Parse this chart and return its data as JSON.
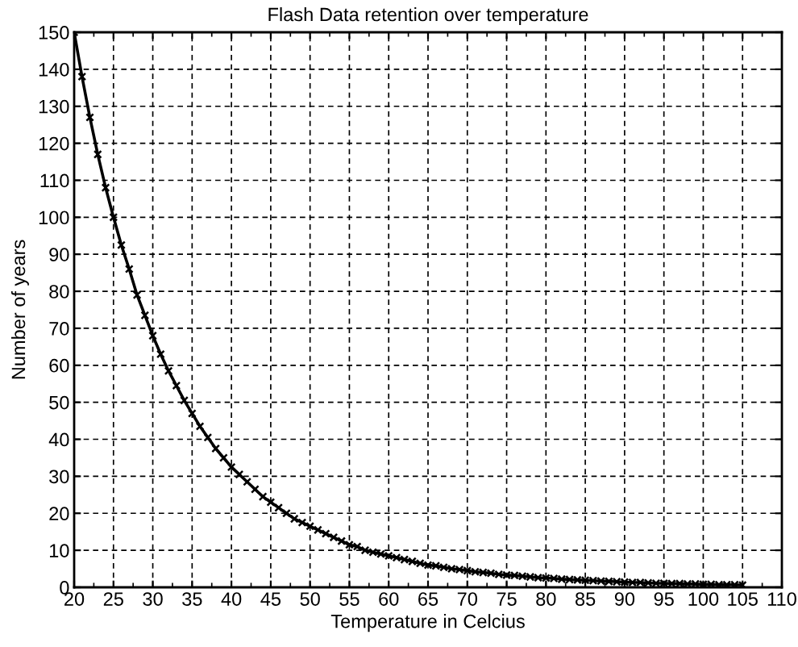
{
  "chart_data": {
    "type": "line",
    "title": "Flash Data retention over temperature",
    "xlabel": "Temperature in Celcius",
    "ylabel": "Number of years",
    "x": [
      20,
      21,
      22,
      23,
      24,
      25,
      26,
      27,
      28,
      29,
      30,
      31,
      32,
      33,
      34,
      35,
      36,
      37,
      38,
      39,
      40,
      41,
      42,
      43,
      44,
      45,
      46,
      47,
      48,
      49,
      50,
      51,
      52,
      53,
      54,
      55,
      56,
      57,
      58,
      59,
      60,
      61,
      62,
      63,
      64,
      65,
      66,
      67,
      68,
      69,
      70,
      71,
      72,
      73,
      74,
      75,
      76,
      77,
      78,
      79,
      80,
      81,
      82,
      83,
      84,
      85,
      86,
      87,
      88,
      89,
      90,
      91,
      92,
      93,
      94,
      95,
      96,
      97,
      98,
      99,
      100,
      101,
      102,
      103,
      104,
      105
    ],
    "series": [
      {
        "color": "#000000",
        "values": [
          150,
          138,
          127,
          117,
          108,
          100,
          92.5,
          86,
          79,
          73.5,
          68,
          63,
          58.5,
          54.5,
          50.5,
          47,
          43.5,
          40.5,
          37.5,
          35,
          32.5,
          30.5,
          28.5,
          26.5,
          24.5,
          23,
          21.5,
          20,
          18.5,
          17.5,
          16.5,
          15.5,
          14.5,
          13.5,
          12.5,
          11.5,
          11,
          10,
          9.5,
          9,
          8.5,
          8,
          7.5,
          7,
          6.5,
          6,
          5.8,
          5.4,
          5,
          4.8,
          4.5,
          4.2,
          4,
          3.8,
          3.5,
          3.3,
          3.2,
          3,
          2.8,
          2.6,
          2.5,
          2.4,
          2.2,
          2.1,
          2,
          1.9,
          1.8,
          1.7,
          1.6,
          1.5,
          1.4,
          1.3,
          1.3,
          1.2,
          1.1,
          1.1,
          1,
          1,
          0.9,
          0.9,
          0.8,
          0.8,
          0.7,
          0.7,
          0.7,
          0.6
        ]
      }
    ],
    "xlim": [
      20,
      110
    ],
    "xticks": [
      20,
      {
        "value": 22.5,
        "label": null
      },
      25,
      {
        "value": 27.5,
        "label": null
      },
      30,
      {
        "value": 32.5,
        "label": null
      },
      35,
      {
        "value": 37.5,
        "label": null
      },
      40,
      {
        "value": 42.5,
        "label": null
      },
      45,
      {
        "value": 47.5,
        "label": null
      },
      50,
      {
        "value": 52.5,
        "label": null
      },
      55,
      {
        "value": 57.5,
        "label": null
      },
      60,
      {
        "value": 62.5,
        "label": null
      },
      65,
      {
        "value": 67.5,
        "label": null
      },
      70,
      {
        "value": 72.5,
        "label": null
      },
      75,
      {
        "value": 77.5,
        "label": null
      },
      80,
      {
        "value": 82.5,
        "label": null
      },
      85,
      {
        "value": 87.5,
        "label": null
      },
      90,
      {
        "value": 92.5,
        "label": null
      },
      95,
      {
        "value": 97.5,
        "label": null
      },
      100,
      {
        "value": 102.5,
        "label": null
      },
      105,
      {
        "value": 107.5,
        "label": null
      },
      110
    ],
    "ylim": [
      0,
      150
    ],
    "yticks": [
      0,
      10,
      20,
      30,
      40,
      50,
      60,
      70,
      80,
      90,
      100,
      110,
      120,
      130,
      140,
      150
    ],
    "grid": true,
    "marker": "cross",
    "line_style": "solid"
  }
}
